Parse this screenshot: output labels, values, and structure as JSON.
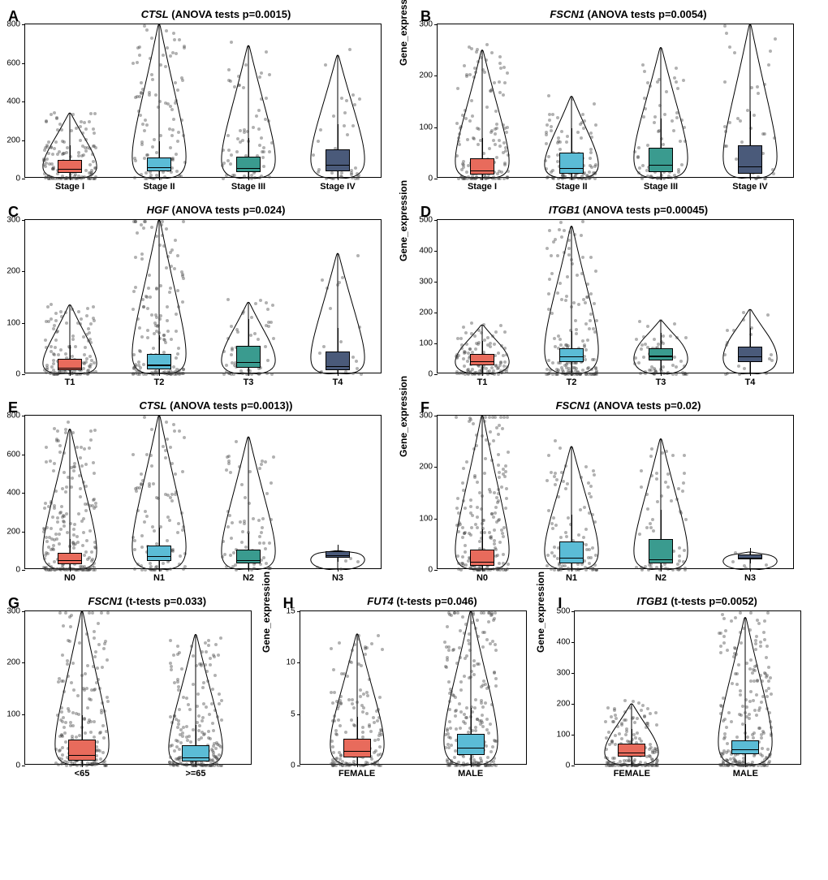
{
  "ylabel": "Gene_expression",
  "colors": [
    "#e86b5c",
    "#5bbcd6",
    "#3a9b8f",
    "#4a5a7a"
  ],
  "panels": [
    {
      "id": "A",
      "gene": "CTSL",
      "test": "ANOVA tests p=0.0015",
      "ymax": 800,
      "ystep": 200,
      "cats": [
        "Stage I",
        "Stage II",
        "Stage III",
        "Stage IV"
      ],
      "boxes": [
        {
          "q1": 30,
          "med": 55,
          "q3": 95
        },
        {
          "q1": 40,
          "med": 65,
          "q3": 110
        },
        {
          "q1": 35,
          "med": 60,
          "q3": 115
        },
        {
          "q1": 40,
          "med": 75,
          "q3": 150
        }
      ],
      "violinTops": [
        340,
        800,
        690,
        640
      ],
      "n": [
        140,
        110,
        70,
        40
      ]
    },
    {
      "id": "B",
      "gene": "FSCN1",
      "test": "ANOVA tests p=0.0054",
      "ymax": 300,
      "ystep": 100,
      "cats": [
        "Stage I",
        "Stage II",
        "Stage III",
        "Stage IV"
      ],
      "boxes": [
        {
          "q1": 8,
          "med": 18,
          "q3": 40
        },
        {
          "q1": 10,
          "med": 22,
          "q3": 50
        },
        {
          "q1": 12,
          "med": 28,
          "q3": 60
        },
        {
          "q1": 10,
          "med": 25,
          "q3": 65
        }
      ],
      "violinTops": [
        250,
        160,
        255,
        310
      ],
      "n": [
        140,
        110,
        70,
        40
      ]
    },
    {
      "id": "C",
      "gene": "HGF",
      "test": "ANOVA tests p=0.024",
      "ymax": 300,
      "ystep": 100,
      "cats": [
        "T1",
        "T2",
        "T3",
        "T4"
      ],
      "boxes": [
        {
          "q1": 8,
          "med": 15,
          "q3": 30
        },
        {
          "q1": 10,
          "med": 20,
          "q3": 40
        },
        {
          "q1": 12,
          "med": 25,
          "q3": 55
        },
        {
          "q1": 8,
          "med": 18,
          "q3": 45
        }
      ],
      "violinTops": [
        135,
        310,
        140,
        235
      ],
      "n": [
        120,
        160,
        60,
        20
      ]
    },
    {
      "id": "D",
      "gene": "ITGB1",
      "test": "ANOVA tests p=0.00045",
      "ymax": 500,
      "ystep": 100,
      "cats": [
        "T1",
        "T2",
        "T3",
        "T4"
      ],
      "boxes": [
        {
          "q1": 30,
          "med": 45,
          "q3": 65
        },
        {
          "q1": 40,
          "med": 60,
          "q3": 85
        },
        {
          "q1": 45,
          "med": 62,
          "q3": 85
        },
        {
          "q1": 40,
          "med": 60,
          "q3": 90
        }
      ],
      "violinTops": [
        160,
        480,
        175,
        210
      ],
      "n": [
        120,
        160,
        60,
        20
      ]
    },
    {
      "id": "E",
      "gene": "CTSL",
      "test": "ANOVA tests p=0.0013",
      "ymaxLabel": ")",
      "ymax": 800,
      "ystep": 200,
      "cats": [
        "N0",
        "N1",
        "N2",
        "N3"
      ],
      "boxes": [
        {
          "q1": 30,
          "med": 55,
          "q3": 90
        },
        {
          "q1": 45,
          "med": 75,
          "q3": 125
        },
        {
          "q1": 35,
          "med": 55,
          "q3": 105
        },
        {
          "q1": 65,
          "med": 80,
          "q3": 95
        }
      ],
      "violinTops": [
        730,
        800,
        690,
        100
      ],
      "n": [
        200,
        100,
        70,
        5
      ]
    },
    {
      "id": "F",
      "gene": "FSCN1",
      "test": "ANOVA tests p=0.02",
      "ymax": 300,
      "ystep": 100,
      "cats": [
        "N0",
        "N1",
        "N2",
        "N3"
      ],
      "boxes": [
        {
          "q1": 8,
          "med": 18,
          "q3": 40
        },
        {
          "q1": 12,
          "med": 25,
          "q3": 55
        },
        {
          "q1": 12,
          "med": 22,
          "q3": 60
        },
        {
          "q1": 20,
          "med": 25,
          "q3": 30
        }
      ],
      "violinTops": [
        310,
        240,
        255,
        35
      ],
      "n": [
        200,
        100,
        70,
        5
      ]
    },
    {
      "id": "G",
      "gene": "FSCN1",
      "test": "t-tests p=0.033",
      "ymax": 300,
      "ystep": 100,
      "cats": [
        "<65",
        ">=65"
      ],
      "boxes": [
        {
          "q1": 10,
          "med": 22,
          "q3": 50
        },
        {
          "q1": 8,
          "med": 18,
          "q3": 40
        }
      ],
      "violinTops": [
        310,
        255
      ],
      "n": [
        180,
        200
      ]
    },
    {
      "id": "H",
      "gene": "FUT4",
      "test": "t-tests p=0.046",
      "ymax": 15,
      "ystep": 5,
      "cats": [
        "FEMALE",
        "MALE"
      ],
      "boxes": [
        {
          "q1": 0.8,
          "med": 1.5,
          "q3": 2.6
        },
        {
          "q1": 1.0,
          "med": 1.8,
          "q3": 3.1
        }
      ],
      "violinTops": [
        12.8,
        16.2
      ],
      "n": [
        160,
        220
      ]
    },
    {
      "id": "I",
      "gene": "ITGB1",
      "test": "t-tests p=0.0052",
      "ymax": 500,
      "ystep": 100,
      "cats": [
        "FEMALE",
        "MALE"
      ],
      "boxes": [
        {
          "q1": 30,
          "med": 45,
          "q3": 70
        },
        {
          "q1": 38,
          "med": 55,
          "q3": 82
        }
      ],
      "violinTops": [
        200,
        480
      ],
      "n": [
        160,
        220
      ]
    }
  ]
}
